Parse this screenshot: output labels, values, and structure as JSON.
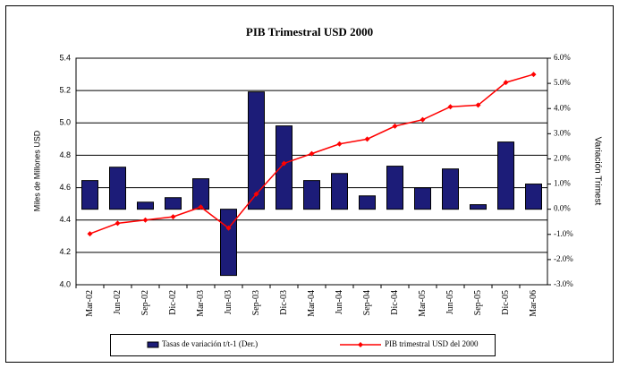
{
  "chart_data": {
    "type": "bar",
    "title": "PIB Trimestral USD 2000",
    "ylabel": "Miles de Millones USD",
    "y2label": "Variación Trimest",
    "categories": [
      "Mar-02",
      "Jun-02",
      "Sep-02",
      "Dic-02",
      "Mar-03",
      "Jun-03",
      "Sep-03",
      "Dic-03",
      "Mar-04",
      "Jun-04",
      "Sep-04",
      "Dic-04",
      "Mar-05",
      "Jun-05",
      "Sep-05",
      "Dic-05",
      "Mar-06"
    ],
    "series": [
      {
        "name": "Tasas de variación t/t-1 (Der.)",
        "type": "bar",
        "axis": "y2",
        "color": "#1c1c78",
        "values": [
          1.14,
          1.67,
          0.28,
          0.46,
          1.21,
          -2.63,
          4.66,
          3.31,
          1.14,
          1.42,
          0.53,
          1.71,
          0.85,
          1.6,
          0.18,
          2.67,
          1.0
        ]
      },
      {
        "name": "PIB trimestral USD del 2000",
        "type": "line",
        "color": "#ff0000",
        "values": [
          4.315,
          4.38,
          4.4,
          4.42,
          4.48,
          4.35,
          4.56,
          4.75,
          4.81,
          4.87,
          4.9,
          4.98,
          5.02,
          5.1,
          5.11,
          5.25,
          5.3
        ]
      }
    ],
    "ylim": [
      4,
      5.4
    ],
    "yticks": [
      {
        "value": 4,
        "label": "4.0"
      },
      4.2,
      4.4,
      4.6,
      4.8,
      {
        "value": 5,
        "label": "5.0"
      },
      5.2,
      5.4
    ],
    "y2lim": [
      -3,
      6
    ],
    "y2ticks": [
      {
        "value": -3,
        "label": "-3.0%"
      },
      {
        "value": -2,
        "label": "-2.0%"
      },
      {
        "value": -1,
        "label": "-1.0%"
      },
      {
        "value": 0,
        "label": "0.0%"
      },
      {
        "value": 1,
        "label": "1.0%"
      },
      {
        "value": 2,
        "label": "2.0%"
      },
      {
        "value": 3,
        "label": "3.0%"
      },
      {
        "value": 4,
        "label": "4.0%"
      },
      {
        "value": 5,
        "label": "5.0%"
      },
      {
        "value": 6,
        "label": "6.0%"
      }
    ],
    "grid": true,
    "legend": "bottom"
  }
}
